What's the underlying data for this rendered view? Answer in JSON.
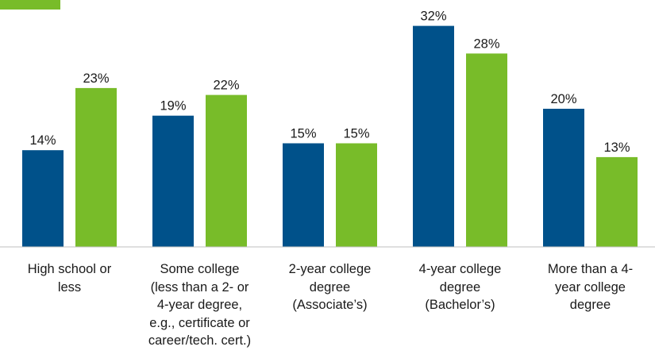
{
  "colors": {
    "series1": "#00518a",
    "series2": "#78bc29",
    "axis": "#bfbfbf"
  },
  "chart_data": {
    "type": "bar",
    "categories": [
      "High school or\nless",
      "Some college\n(less than a 2- or\n4-year degree,\ne.g., certificate or\ncareer/tech. cert.)",
      "2-year college\ndegree\n(Associate’s)",
      "4-year college\ndegree\n(Bachelor’s)",
      "More than a 4-\nyear college\ndegree"
    ],
    "series": [
      {
        "values": [
          14,
          19,
          15,
          32,
          20
        ],
        "labels": [
          "14%",
          "19%",
          "15%",
          "32%",
          "20%"
        ]
      },
      {
        "values": [
          23,
          22,
          15,
          28,
          13
        ],
        "labels": [
          "23%",
          "22%",
          "15%",
          "28%",
          "13%"
        ]
      }
    ],
    "ylim": [
      0,
      35
    ],
    "grid": false,
    "legend": "top-left"
  }
}
